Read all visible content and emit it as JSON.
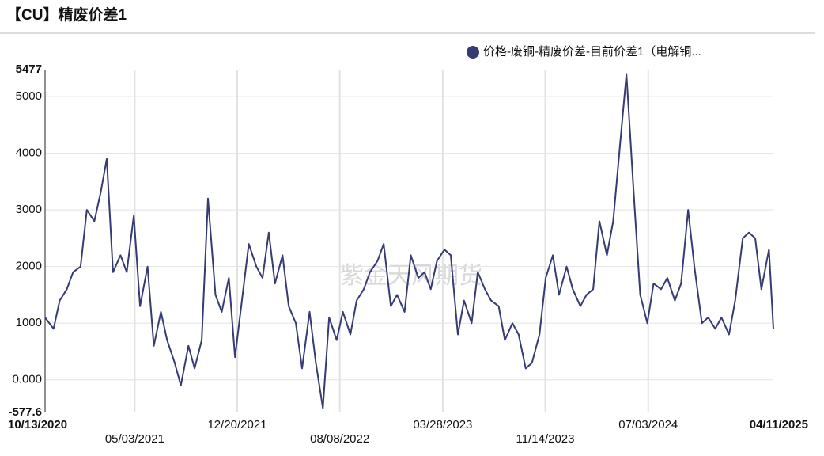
{
  "chart_data": {
    "type": "line",
    "title": "【CU】精废价差1",
    "watermark": "紫金天风期货",
    "x": [
      "2020-10-13",
      "2020-11-01",
      "2020-11-15",
      "2020-12-01",
      "2020-12-15",
      "2021-01-01",
      "2021-01-15",
      "2021-02-01",
      "2021-02-15",
      "2021-03-01",
      "2021-03-15",
      "2021-04-01",
      "2021-04-15",
      "2021-05-01",
      "2021-05-15",
      "2021-06-01",
      "2021-06-15",
      "2021-07-01",
      "2021-07-15",
      "2021-08-01",
      "2021-08-15",
      "2021-09-01",
      "2021-09-15",
      "2021-10-01",
      "2021-10-15",
      "2021-11-01",
      "2021-11-15",
      "2021-12-01",
      "2021-12-15",
      "2022-01-01",
      "2022-01-15",
      "2022-02-01",
      "2022-02-15",
      "2022-03-01",
      "2022-03-15",
      "2022-04-01",
      "2022-04-15",
      "2022-05-01",
      "2022-05-15",
      "2022-06-01",
      "2022-06-15",
      "2022-07-01",
      "2022-07-15",
      "2022-08-01",
      "2022-08-15",
      "2022-09-01",
      "2022-09-15",
      "2022-10-01",
      "2022-10-15",
      "2022-11-01",
      "2022-11-15",
      "2022-12-01",
      "2022-12-15",
      "2023-01-01",
      "2023-01-15",
      "2023-02-01",
      "2023-02-15",
      "2023-03-01",
      "2023-03-15",
      "2023-04-01",
      "2023-04-15",
      "2023-05-01",
      "2023-05-15",
      "2023-06-01",
      "2023-06-15",
      "2023-07-01",
      "2023-07-15",
      "2023-08-01",
      "2023-08-15",
      "2023-09-01",
      "2023-09-15",
      "2023-10-01",
      "2023-10-15",
      "2023-11-01",
      "2023-11-15",
      "2023-12-01",
      "2023-12-15",
      "2024-01-01",
      "2024-01-15",
      "2024-02-01",
      "2024-02-15",
      "2024-03-01",
      "2024-03-15",
      "2024-04-01",
      "2024-04-15",
      "2024-05-01",
      "2024-05-15",
      "2024-06-01",
      "2024-06-15",
      "2024-07-01",
      "2024-07-15",
      "2024-08-01",
      "2024-08-15",
      "2024-09-01",
      "2024-09-15",
      "2024-10-01",
      "2024-10-15",
      "2024-11-01",
      "2024-11-15",
      "2024-12-01",
      "2024-12-15",
      "2025-01-01",
      "2025-01-15",
      "2025-02-01",
      "2025-02-15",
      "2025-03-01",
      "2025-03-15",
      "2025-04-01",
      "2025-04-11"
    ],
    "series": [
      {
        "name": "价格-废铜-精废价差-目前价差1（电解铜...",
        "color": "#363b74",
        "values": [
          1100,
          900,
          1400,
          1600,
          1900,
          2000,
          3000,
          2800,
          3300,
          3900,
          1900,
          2200,
          1900,
          2900,
          1300,
          2000,
          600,
          1200,
          700,
          300,
          -100,
          600,
          200,
          700,
          3200,
          1500,
          1200,
          1800,
          400,
          1500,
          2400,
          2000,
          1800,
          2600,
          1700,
          2200,
          1300,
          1000,
          200,
          1200,
          300,
          -500,
          1100,
          700,
          1200,
          800,
          1400,
          1600,
          1900,
          2100,
          2400,
          1300,
          1500,
          1200,
          2200,
          1800,
          1900,
          1600,
          2100,
          2300,
          2200,
          800,
          1400,
          1000,
          1900,
          1600,
          1400,
          1300,
          700,
          1000,
          800,
          200,
          300,
          800,
          1800,
          2200,
          1500,
          2000,
          1600,
          1300,
          1500,
          1600,
          2800,
          2200,
          2800,
          4200,
          5400,
          3200,
          1500,
          1000,
          1700,
          1600,
          1800,
          1400,
          1700,
          3000,
          2000,
          1000,
          1100,
          900,
          1100,
          800,
          1400,
          2500,
          2600,
          2500,
          1600,
          2300,
          900
        ]
      }
    ],
    "xlim": [
      "2020-10-13",
      "2025-04-11"
    ],
    "xticks": [
      {
        "value": "2020-10-13",
        "label": "10/13/2020"
      },
      {
        "value": "2021-05-03",
        "label": "05/03/2021"
      },
      {
        "value": "2021-12-20",
        "label": "12/20/2021"
      },
      {
        "value": "2022-08-08",
        "label": "08/08/2022"
      },
      {
        "value": "2023-03-28",
        "label": "03/28/2023"
      },
      {
        "value": "2023-11-14",
        "label": "11/14/2023"
      },
      {
        "value": "2024-07-03",
        "label": "07/03/2024"
      },
      {
        "value": "2025-04-11",
        "label": "04/11/2025"
      }
    ],
    "ylim": [
      -577.6,
      5477
    ],
    "yticks": [
      -577.6,
      {
        "value": 0,
        "label": "0.000"
      },
      1000,
      2000,
      3000,
      4000,
      5000,
      5477
    ],
    "grid": true
  }
}
